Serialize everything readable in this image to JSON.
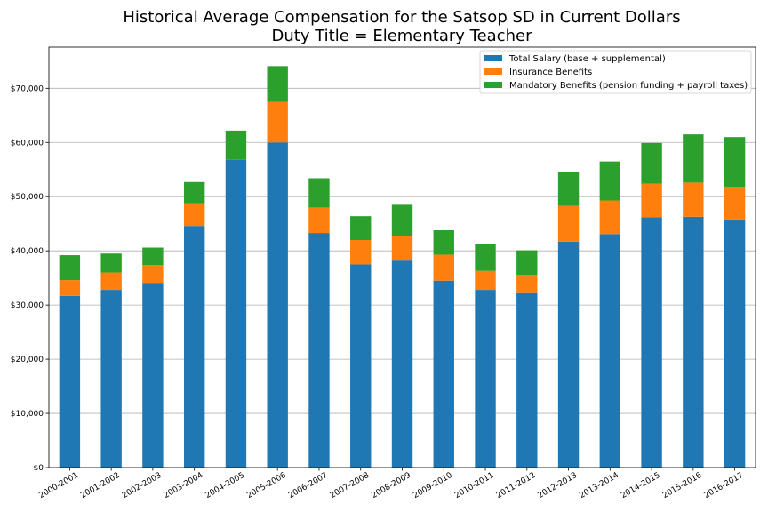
{
  "chart_data": {
    "type": "bar",
    "stacked": true,
    "title": "Historical Average Compensation for the Satsop SD in Current Dollars",
    "subtitle": "Duty Title = Elementary Teacher",
    "xlabel": "",
    "ylabel": "",
    "ylim": [
      0,
      77600
    ],
    "grid": "horizontal",
    "legend_position": "top-right",
    "y_ticks": [
      0,
      10000,
      20000,
      30000,
      40000,
      50000,
      60000,
      70000
    ],
    "y_tick_labels": [
      "$0",
      "$10,000",
      "$20,000",
      "$30,000",
      "$40,000",
      "$50,000",
      "$60,000",
      "$70,000"
    ],
    "categories": [
      "2000-2001",
      "2001-2002",
      "2002-2003",
      "2003-2004",
      "2004-2005",
      "2005-2006",
      "2006-2007",
      "2007-2008",
      "2008-2009",
      "2009-2010",
      "2010-2011",
      "2011-2012",
      "2012-2013",
      "2013-2014",
      "2014-2015",
      "2015-2016",
      "2016-2017"
    ],
    "series": [
      {
        "name": "Total Salary (base + supplemental)",
        "color": "#1f77b4",
        "values": [
          31700,
          32800,
          34100,
          44600,
          56800,
          60000,
          43300,
          37500,
          38200,
          34500,
          32800,
          32200,
          41700,
          43100,
          46200,
          46300,
          45800
        ]
      },
      {
        "name": "Insurance Benefits",
        "color": "#ff7f0e",
        "values": [
          2900,
          3200,
          3300,
          4200,
          0,
          7500,
          4700,
          4500,
          4500,
          4800,
          3500,
          3400,
          6600,
          6200,
          6200,
          6300,
          6000
        ]
      },
      {
        "name": "Mandatory Benefits (pension funding + payroll taxes)",
        "color": "#2ca02c",
        "values": [
          4600,
          3500,
          3200,
          3900,
          5400,
          6600,
          5400,
          4400,
          5800,
          4500,
          5000,
          4500,
          6300,
          7200,
          7500,
          8900,
          9200
        ]
      }
    ]
  }
}
